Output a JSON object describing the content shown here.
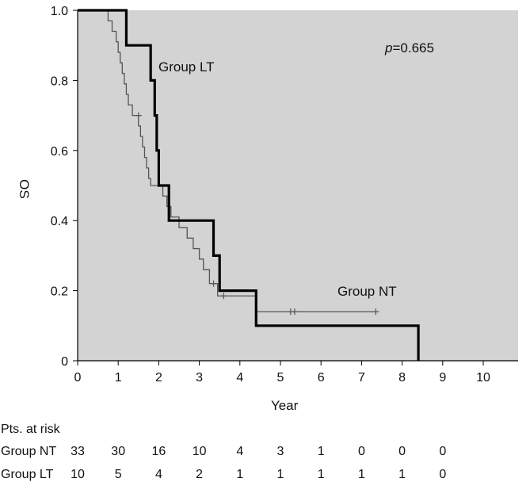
{
  "chart_data": {
    "type": "line",
    "subtype": "kaplan-meier",
    "ylabel": "OS",
    "xlabel": "Year",
    "xlim": [
      0,
      11
    ],
    "ylim": [
      0,
      1
    ],
    "xticks": [
      0,
      1,
      2,
      3,
      4,
      5,
      6,
      7,
      8,
      9,
      10
    ],
    "xtick_labels": [
      "0",
      "1",
      "2",
      "3",
      "4",
      "5",
      "6",
      "7",
      "8",
      "9",
      "10"
    ],
    "yticks": [
      0,
      0.2,
      0.4,
      0.6,
      0.8,
      1.0
    ],
    "ytick_labels": [
      "0",
      "0.2",
      "0.4",
      "0.6",
      "0.8",
      "1.0"
    ],
    "grid": false,
    "background": "#d3d3d3",
    "annotation_p_italic": "p",
    "annotation_p_value": "=0.665",
    "series": [
      {
        "name": "Group NT",
        "label": "Group NT",
        "color": "#555555",
        "steps": [
          [
            0,
            1.0
          ],
          [
            0.75,
            0.97
          ],
          [
            0.85,
            0.94
          ],
          [
            0.95,
            0.91
          ],
          [
            1.0,
            0.88
          ],
          [
            1.05,
            0.85
          ],
          [
            1.1,
            0.82
          ],
          [
            1.15,
            0.79
          ],
          [
            1.2,
            0.76
          ],
          [
            1.25,
            0.73
          ],
          [
            1.35,
            0.7
          ],
          [
            1.5,
            0.67
          ],
          [
            1.55,
            0.64
          ],
          [
            1.6,
            0.61
          ],
          [
            1.65,
            0.58
          ],
          [
            1.7,
            0.55
          ],
          [
            1.75,
            0.52
          ],
          [
            1.8,
            0.5
          ],
          [
            2.1,
            0.47
          ],
          [
            2.2,
            0.44
          ],
          [
            2.3,
            0.41
          ],
          [
            2.5,
            0.38
          ],
          [
            2.7,
            0.35
          ],
          [
            2.85,
            0.32
          ],
          [
            3.0,
            0.29
          ],
          [
            3.1,
            0.26
          ],
          [
            3.25,
            0.22
          ],
          [
            3.45,
            0.185
          ],
          [
            4.4,
            0.14
          ],
          [
            7.35,
            0.14
          ]
        ],
        "censored": [
          [
            1.5,
            0.7
          ],
          [
            3.35,
            0.22
          ],
          [
            3.6,
            0.185
          ],
          [
            5.25,
            0.14
          ],
          [
            5.35,
            0.14
          ],
          [
            7.35,
            0.14
          ]
        ]
      },
      {
        "name": "Group LT",
        "label": "Group LT",
        "color": "#000000",
        "steps": [
          [
            0,
            1.0
          ],
          [
            1.2,
            0.9
          ],
          [
            1.8,
            0.8
          ],
          [
            1.9,
            0.7
          ],
          [
            1.95,
            0.6
          ],
          [
            2.0,
            0.5
          ],
          [
            2.25,
            0.4
          ],
          [
            3.35,
            0.3
          ],
          [
            3.5,
            0.2
          ],
          [
            4.4,
            0.1
          ],
          [
            8.4,
            0.0
          ]
        ],
        "censored": []
      }
    ],
    "risk_table": {
      "title": "Pts. at risk",
      "times": [
        0,
        1,
        2,
        3,
        4,
        5,
        6,
        7,
        8,
        9
      ],
      "rows": [
        {
          "label": "Group NT",
          "values": [
            "33",
            "30",
            "16",
            "10",
            "4",
            "3",
            "1",
            "0",
            "0",
            "0"
          ]
        },
        {
          "label": "Group LT",
          "values": [
            "10",
            "5",
            "4",
            "2",
            "1",
            "1",
            "1",
            "1",
            "1",
            "0"
          ]
        }
      ]
    }
  }
}
